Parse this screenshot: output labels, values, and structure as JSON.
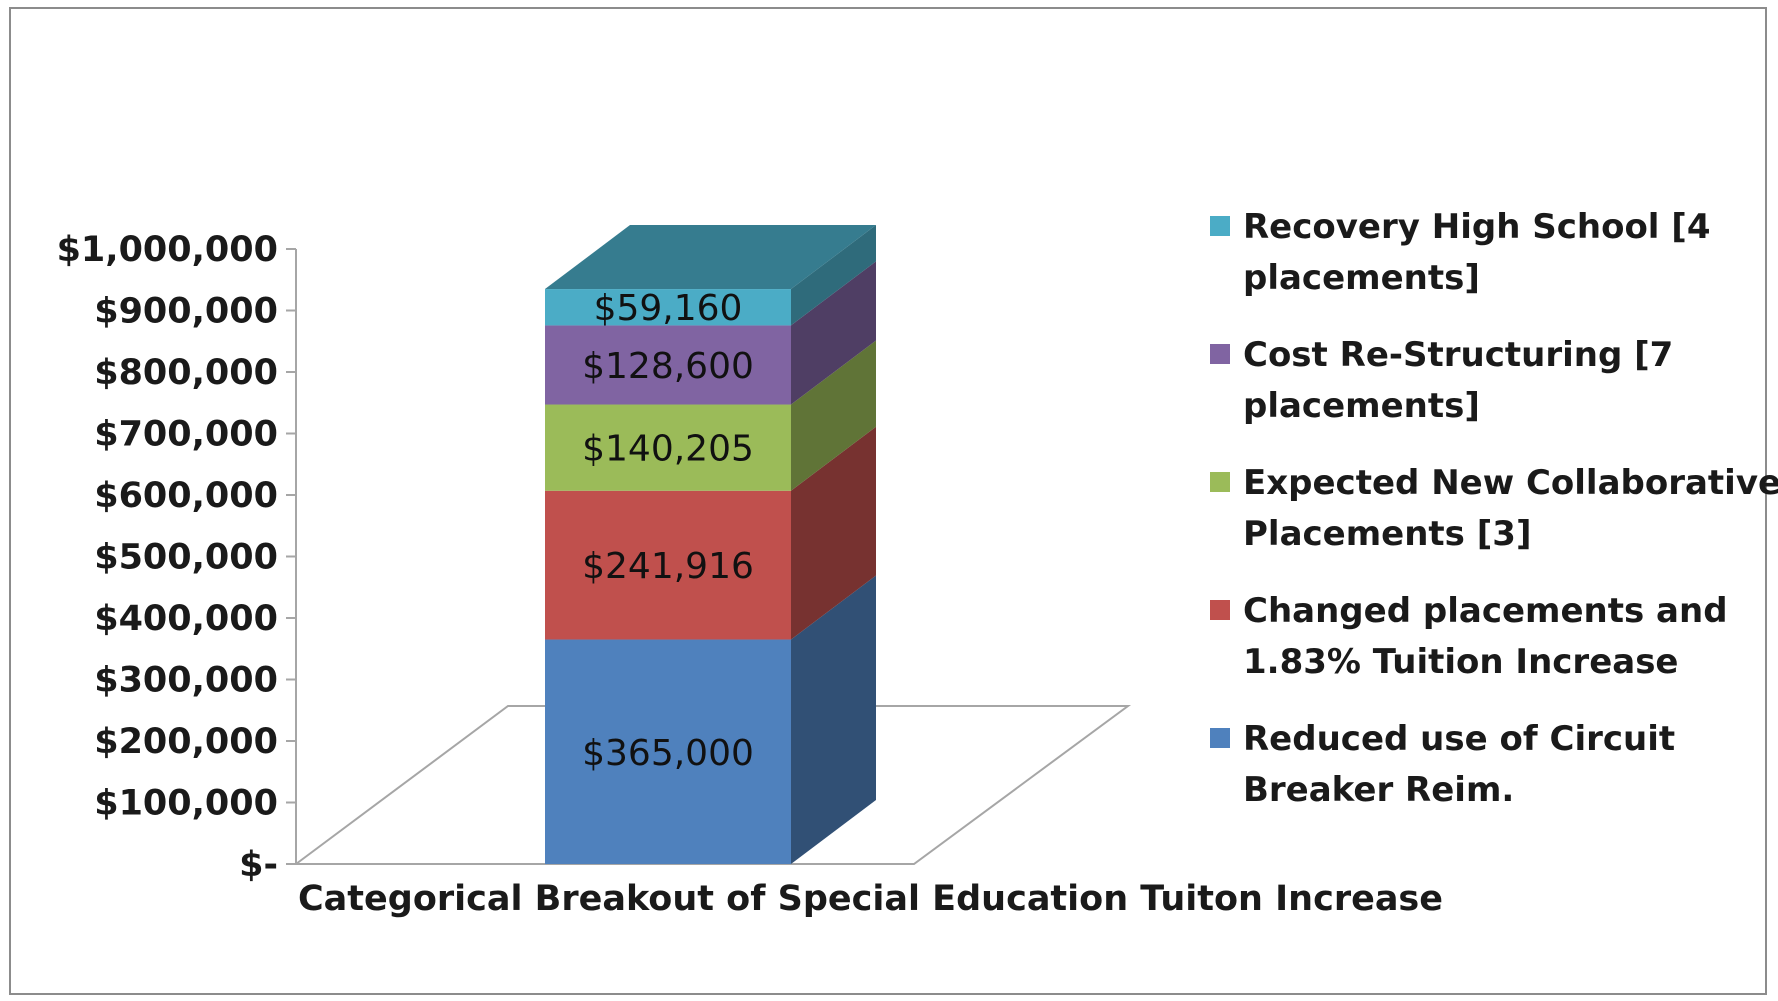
{
  "chart_data": {
    "type": "bar",
    "stacked": true,
    "three_d": true,
    "categories": [
      "Categorical Breakout of Special Education Tuiton Increase"
    ],
    "series": [
      {
        "name": "Reduced use of Circuit Breaker Reim.",
        "values": [
          365000
        ],
        "value_label": "$365,000",
        "color": "#4f81bd"
      },
      {
        "name": "Changed placements and 1.83% Tuition Increase",
        "values": [
          241916
        ],
        "value_label": "$241,916",
        "color": "#c0504d"
      },
      {
        "name": "Expected New Collaborative Placements [3]",
        "values": [
          140205
        ],
        "value_label": "$140,205",
        "color": "#9bbb59"
      },
      {
        "name": "Cost Re-Structuring [7 placements]",
        "values": [
          128600
        ],
        "value_label": "$128,600",
        "color": "#8064a2"
      },
      {
        "name": "Recovery High School [4 placements]",
        "values": [
          59160
        ],
        "value_label": "$59,160",
        "color": "#4bacc6"
      }
    ],
    "legend_order": [
      4,
      3,
      2,
      1,
      0
    ],
    "legend_lines": [
      [
        "Recovery High School [4",
        "placements]"
      ],
      [
        "Cost Re-Structuring [7",
        "placements]"
      ],
      [
        "Expected New Collaborative",
        "Placements [3]"
      ],
      [
        "Changed placements and",
        "1.83% Tuition Increase"
      ],
      [
        "Reduced use of Circuit",
        "Breaker Reim."
      ]
    ],
    "y_ticks": [
      {
        "value": 1000000,
        "label": "$1,000,000"
      },
      {
        "value": 900000,
        "label": "$900,000"
      },
      {
        "value": 800000,
        "label": "$800,000"
      },
      {
        "value": 700000,
        "label": "$700,000"
      },
      {
        "value": 600000,
        "label": "$600,000"
      },
      {
        "value": 500000,
        "label": "$500,000"
      },
      {
        "value": 400000,
        "label": "$400,000"
      },
      {
        "value": 300000,
        "label": "$300,000"
      },
      {
        "value": 200000,
        "label": "$200,000"
      },
      {
        "value": 100000,
        "label": "$100,000"
      },
      {
        "value": 0,
        "label": "$-"
      }
    ],
    "xlabel": "Categorical Breakout of Special Education Tuiton Increase",
    "ylabel": "",
    "title": "",
    "ylim": [
      0,
      1000000
    ],
    "grid": false,
    "legend_position": "right"
  }
}
